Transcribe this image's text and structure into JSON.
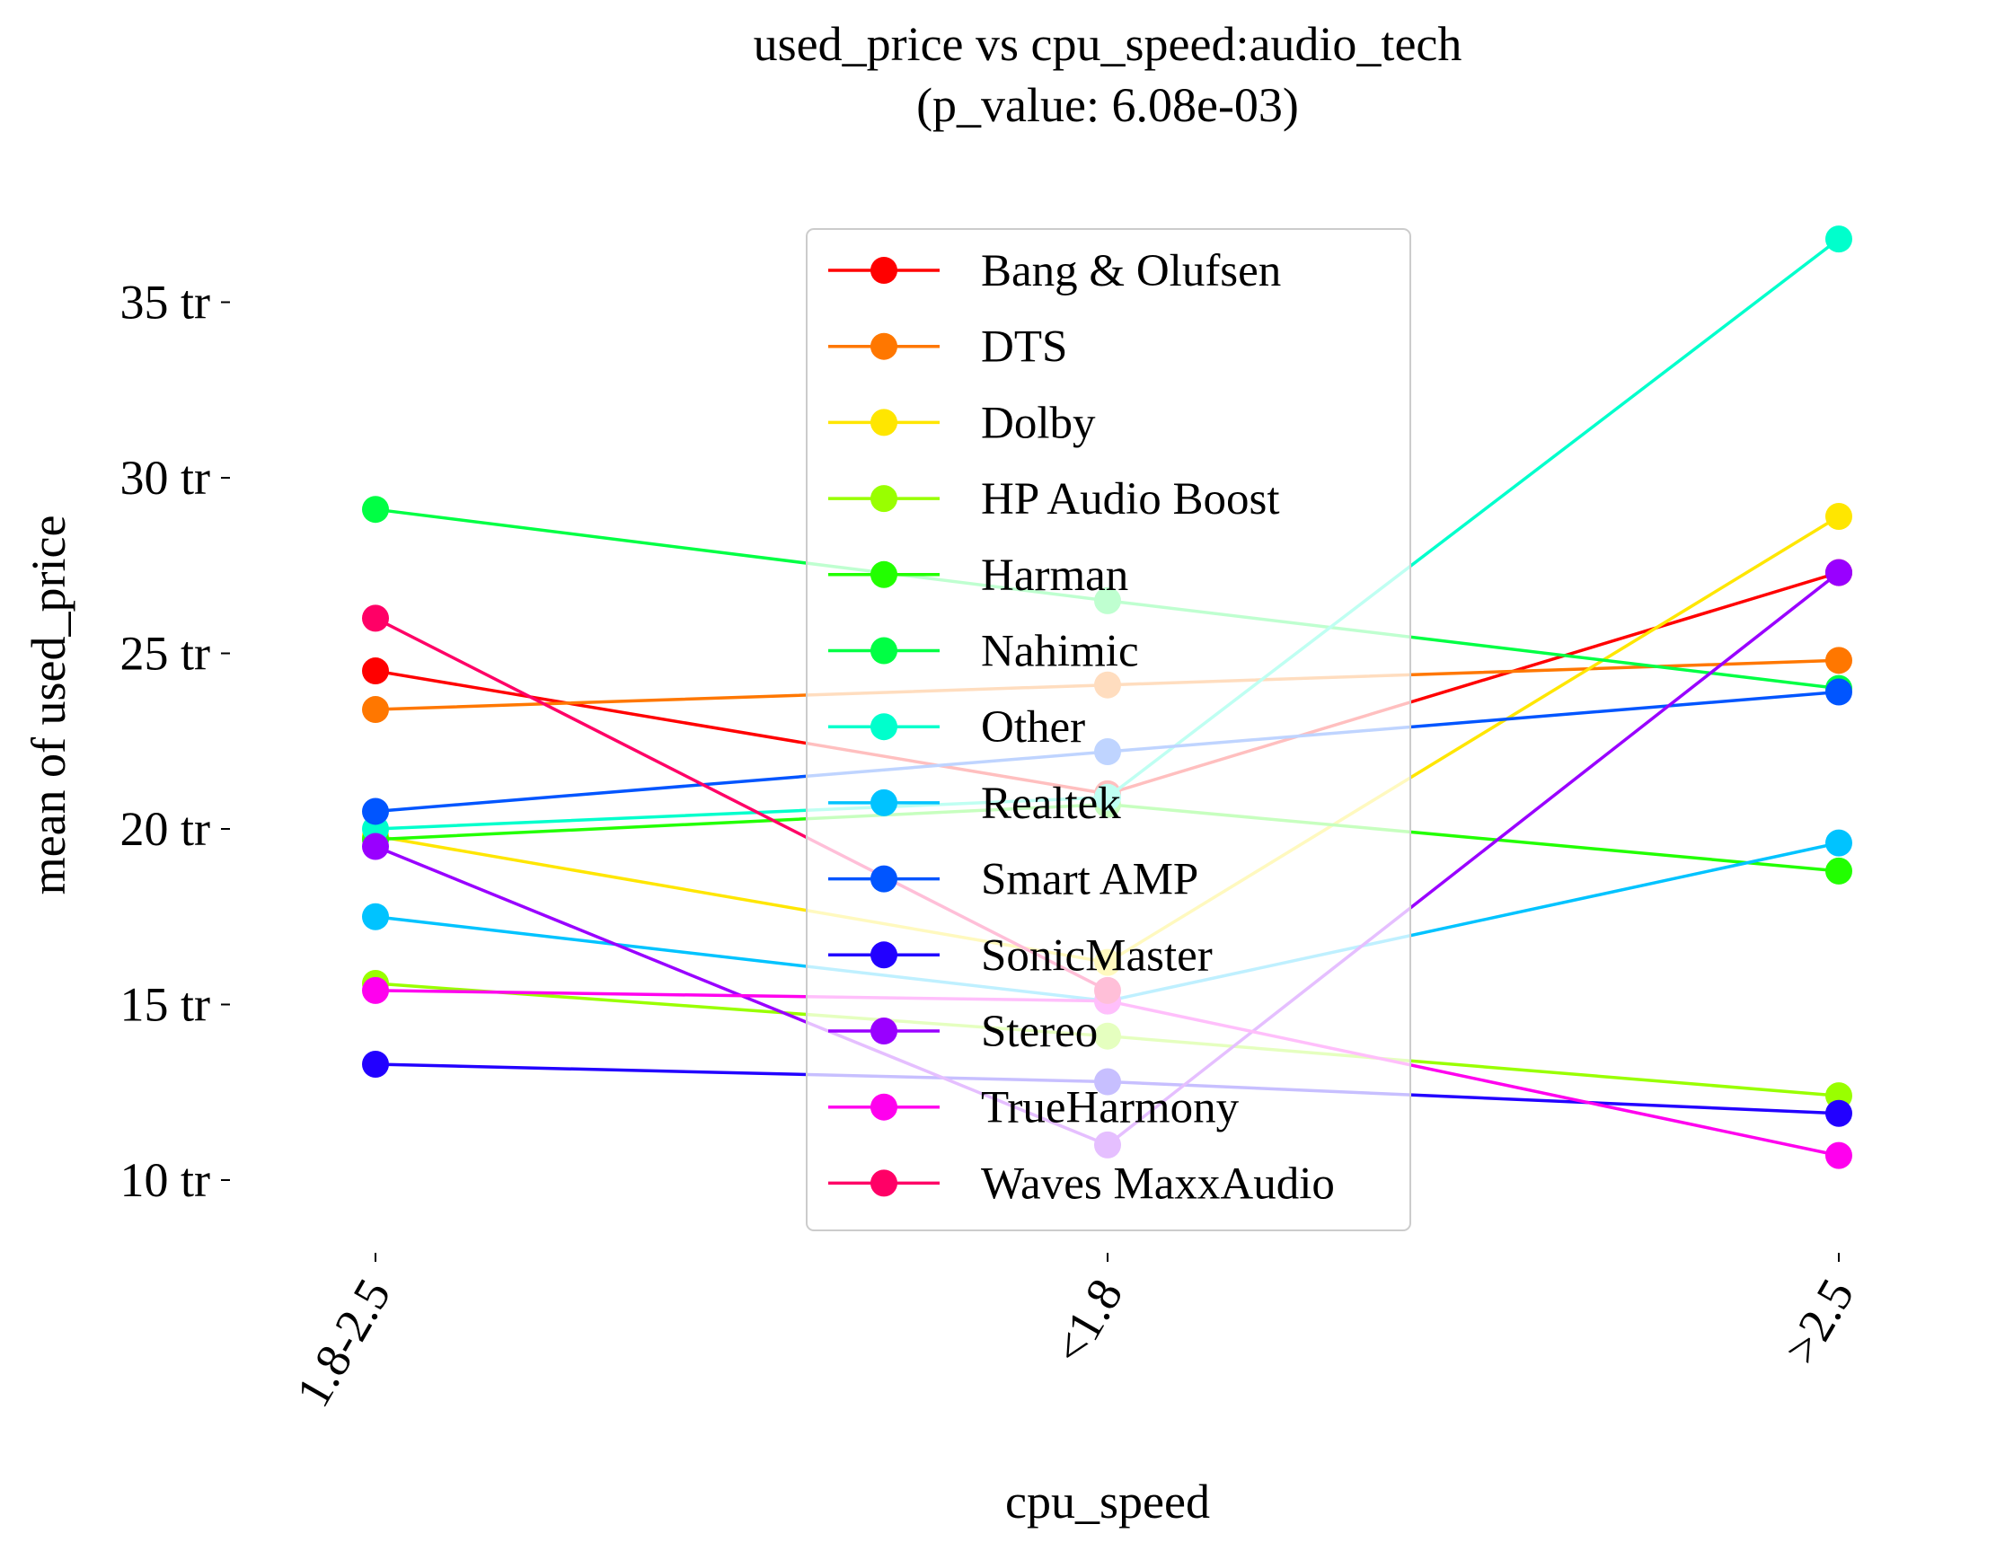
{
  "chart_data": {
    "type": "line",
    "title": "used_price vs cpu_speed:audio_tech",
    "subtitle": "(p_value: 6.08e-03)",
    "xlabel": "cpu_speed",
    "ylabel": "mean of used_price",
    "categories": [
      "1.8-2.5",
      "<1.8",
      ">2.5"
    ],
    "ylim": [
      8,
      37.5
    ],
    "yticks": [
      10,
      15,
      20,
      25,
      30,
      35
    ],
    "ytick_labels": [
      "10 tr",
      "15 tr",
      "20 tr",
      "25 tr",
      "30 tr",
      "35 tr"
    ],
    "grid": false,
    "legend_position": "top-center",
    "series": [
      {
        "name": "Bang & Olufsen",
        "color": "#ff0000",
        "values": [
          24.5,
          21.0,
          27.3
        ]
      },
      {
        "name": "DTS",
        "color": "#ff7700",
        "values": [
          23.4,
          24.1,
          24.8
        ]
      },
      {
        "name": "Dolby",
        "color": "#ffe600",
        "values": [
          19.8,
          16.2,
          28.9
        ]
      },
      {
        "name": "HP Audio Boost",
        "color": "#99ff00",
        "values": [
          15.6,
          14.1,
          12.4
        ]
      },
      {
        "name": "Harman",
        "color": "#22ff00",
        "values": [
          19.7,
          20.7,
          18.8
        ]
      },
      {
        "name": "Nahimic",
        "color": "#00ff44",
        "values": [
          29.1,
          26.5,
          24.0
        ]
      },
      {
        "name": "Other",
        "color": "#00ffcc",
        "values": [
          20.0,
          20.9,
          36.8
        ]
      },
      {
        "name": "Realtek",
        "color": "#00c3ff",
        "values": [
          17.5,
          15.1,
          19.6
        ]
      },
      {
        "name": "Smart AMP",
        "color": "#0055ff",
        "values": [
          20.5,
          22.2,
          23.9
        ]
      },
      {
        "name": "SonicMaster",
        "color": "#2200ff",
        "values": [
          13.3,
          12.8,
          11.9
        ]
      },
      {
        "name": "Stereo",
        "color": "#9900ff",
        "values": [
          19.5,
          11.0,
          27.3
        ]
      },
      {
        "name": "TrueHarmony",
        "color": "#ff00ee",
        "values": [
          15.4,
          15.1,
          10.7
        ]
      },
      {
        "name": "Waves MaxxAudio",
        "color": "#ff0066",
        "values": [
          26.0,
          15.4,
          null
        ]
      }
    ]
  }
}
